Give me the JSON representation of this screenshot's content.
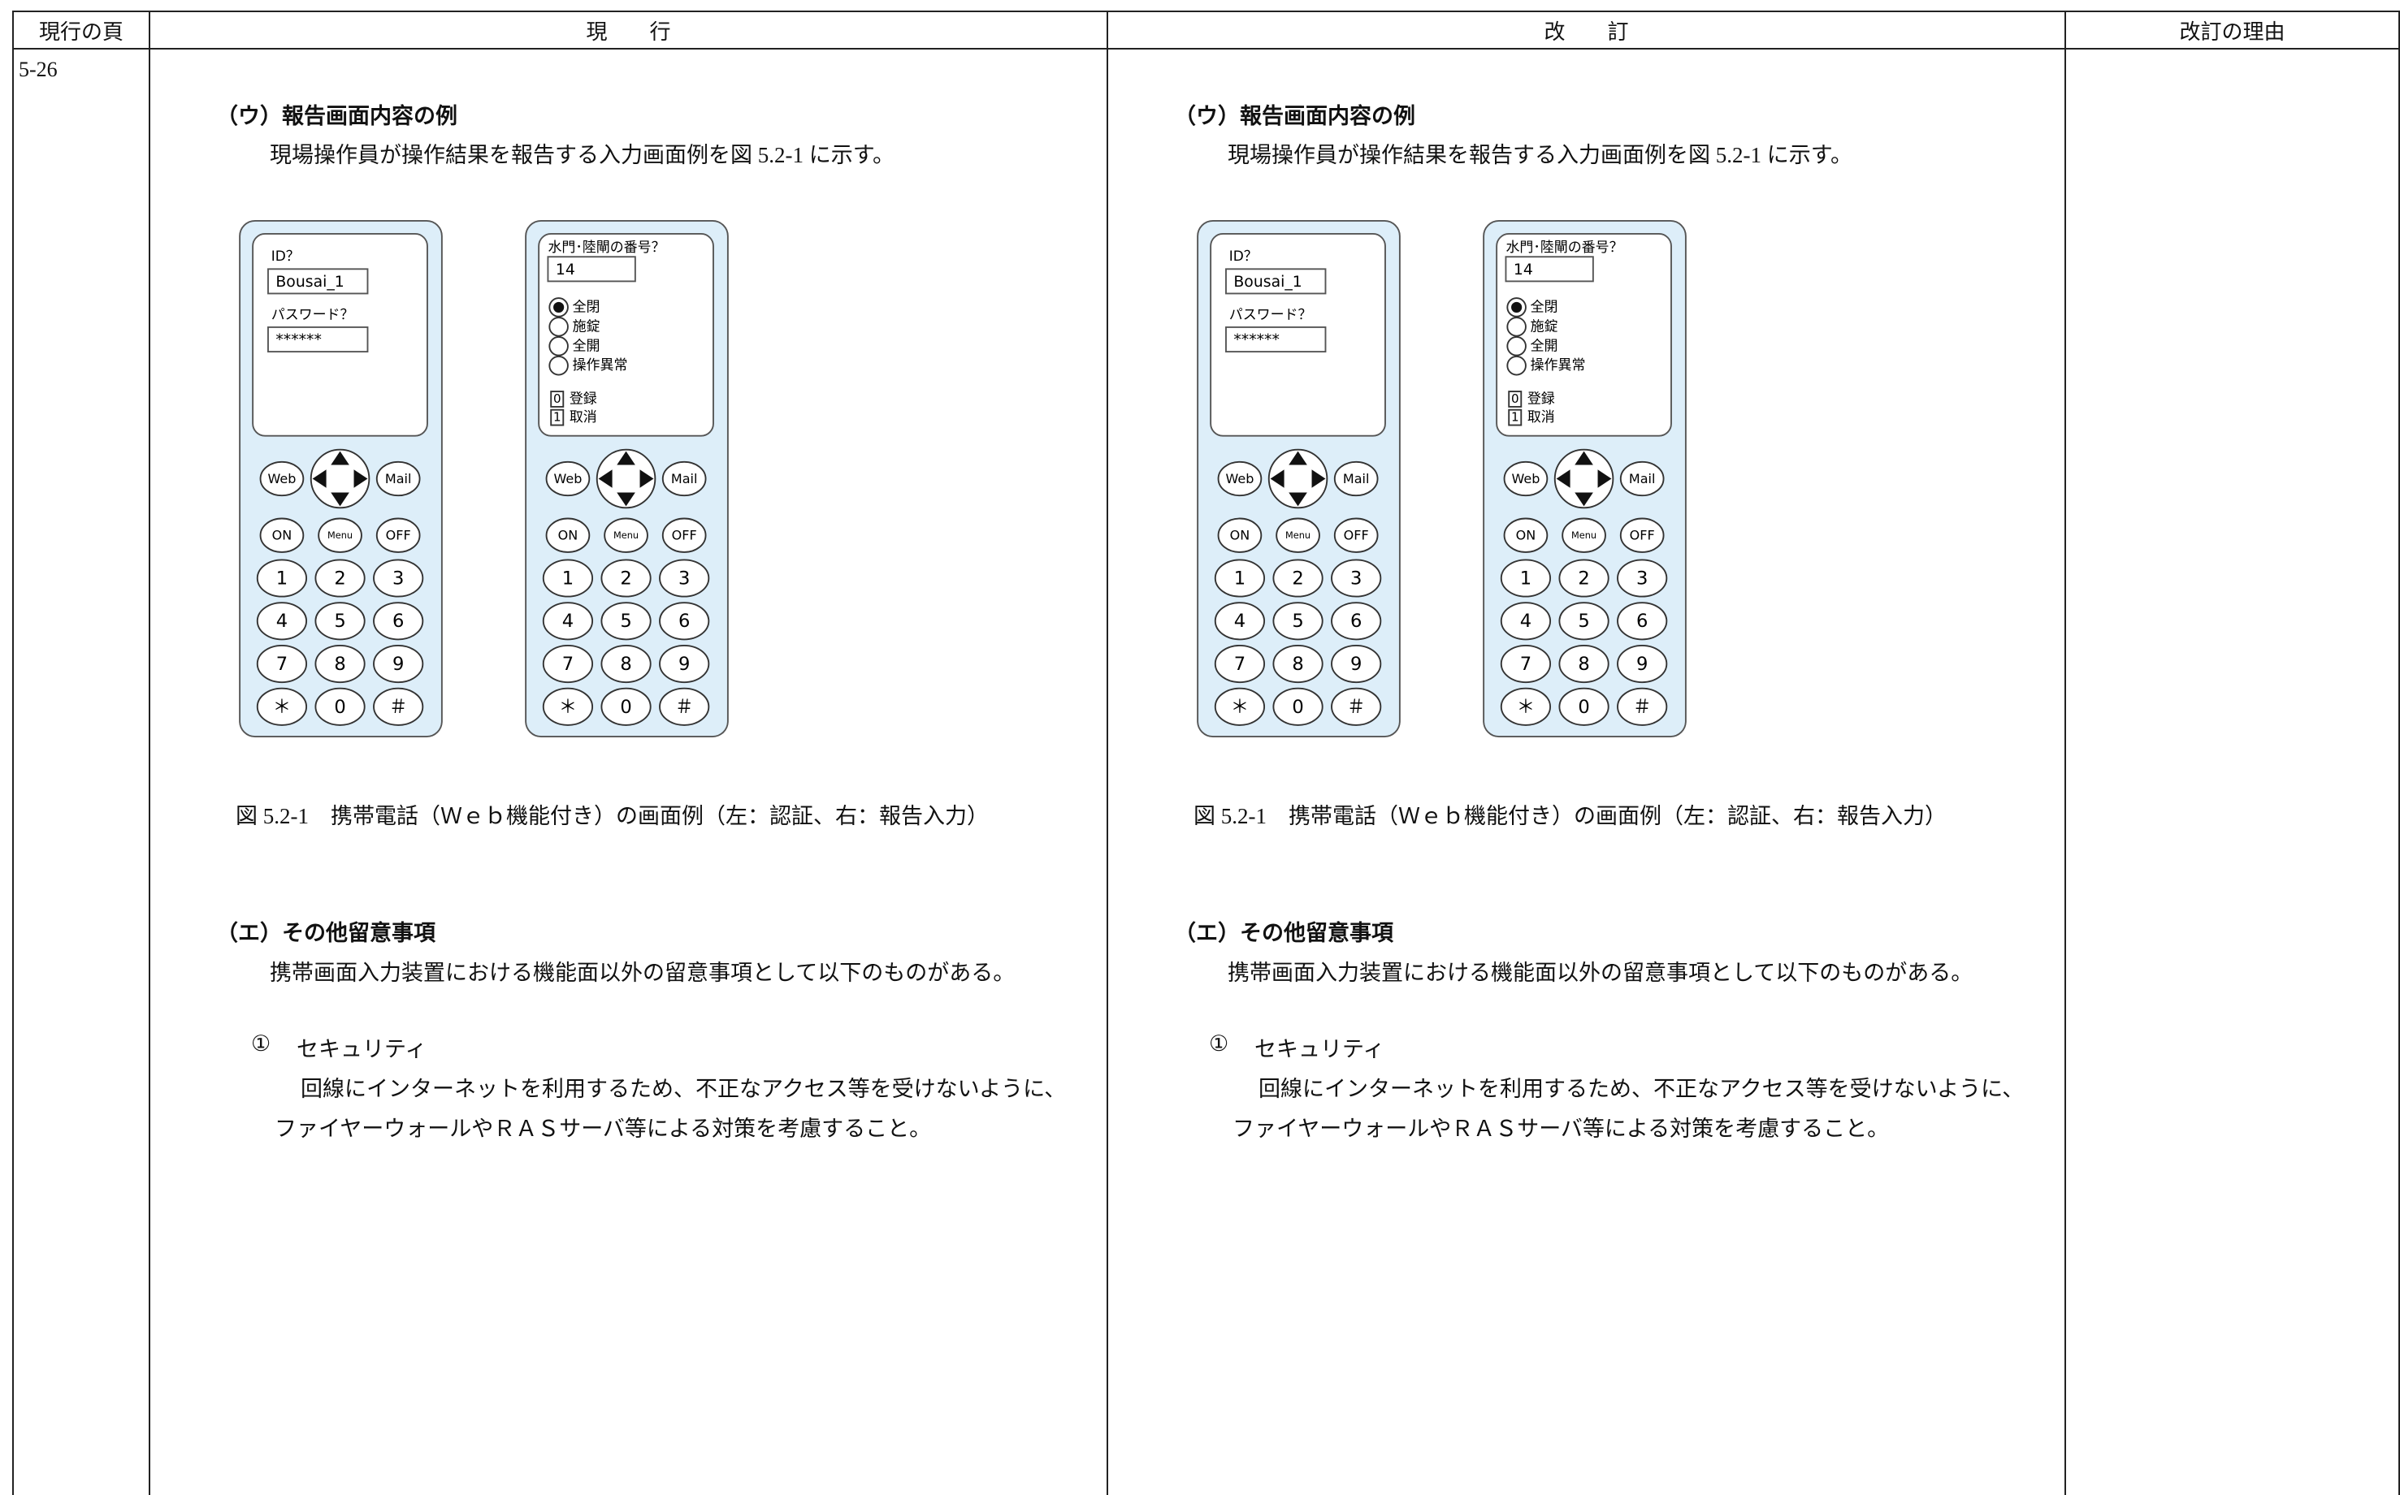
{
  "header": {
    "page": "現行の頁",
    "current": "現　　行",
    "revised": "改　　訂",
    "reason": "改訂の理由"
  },
  "row": {
    "page": "5-26",
    "current": {
      "section_u": {
        "heading": "（ウ）報告画面内容の例",
        "text": "現場操作員が操作結果を報告する入力画面例を図 5.2-1 に示す。"
      },
      "phones": [
        {
          "fields": [
            {
              "label": "ID？",
              "value": "Bousai_1"
            },
            {
              "label": "パスワード？",
              "value": "******"
            }
          ],
          "keys": [
            "Web",
            "Mail",
            "ON",
            "Menu",
            "OFF",
            "1",
            "2",
            "3",
            "4",
            "5",
            "6",
            "7",
            "8",
            "9",
            "＊",
            "0",
            "＃"
          ]
        },
        {
          "fields": [
            {
              "label": "水門･陸閘の番号？",
              "value": "14"
            }
          ],
          "options": [
            {
              "label": "全閉",
              "selected": true
            },
            {
              "label": "施錠",
              "selected": false
            },
            {
              "label": "全開",
              "selected": false
            },
            {
              "label": "操作異常",
              "selected": false
            }
          ],
          "actions": [
            {
              "key": "0",
              "label": "登録"
            },
            {
              "key": "1",
              "label": "取消"
            }
          ],
          "keys": [
            "Web",
            "Mail",
            "ON",
            "Menu",
            "OFF",
            "1",
            "2",
            "3",
            "4",
            "5",
            "6",
            "7",
            "8",
            "9",
            "＊",
            "0",
            "＃"
          ]
        }
      ],
      "caption": "図 5.2-1　携帯電話（Ｗｅｂ機能付き）の画面例（左：認証、右：報告入力）",
      "section_e": {
        "heading": "（エ）その他留意事項",
        "text": "携帯画面入力装置における機能面以外の留意事項として以下のものがある。",
        "item": {
          "number": "①",
          "title": "セキュリティ",
          "lines": [
            "回線にインターネットを利用するため、不正なアクセス等を受けないように、",
            "ファイヤーウォールやＲＡＳサーバ等による対策を考慮すること。"
          ]
        }
      }
    },
    "revised": {
      "section_u": {
        "heading": "（ウ）報告画面内容の例",
        "text": "現場操作員が操作結果を報告する入力画面例を図 5.2-1 に示す。"
      },
      "phones": [
        {
          "fields": [
            {
              "label": "ID？",
              "value": "Bousai_1"
            },
            {
              "label": "パスワード？",
              "value": "******"
            }
          ],
          "keys": [
            "Web",
            "Mail",
            "ON",
            "Menu",
            "OFF",
            "1",
            "2",
            "3",
            "4",
            "5",
            "6",
            "7",
            "8",
            "9",
            "＊",
            "0",
            "＃"
          ]
        },
        {
          "fields": [
            {
              "label": "水門･陸閘の番号？",
              "value": "14"
            }
          ],
          "options": [
            {
              "label": "全閉",
              "selected": true
            },
            {
              "label": "施錠",
              "selected": false
            },
            {
              "label": "全開",
              "selected": false
            },
            {
              "label": "操作異常",
              "selected": false
            }
          ],
          "actions": [
            {
              "key": "0",
              "label": "登録"
            },
            {
              "key": "1",
              "label": "取消"
            }
          ],
          "keys": [
            "Web",
            "Mail",
            "ON",
            "Menu",
            "OFF",
            "1",
            "2",
            "3",
            "4",
            "5",
            "6",
            "7",
            "8",
            "9",
            "＊",
            "0",
            "＃"
          ]
        }
      ],
      "caption": "図 5.2-1　携帯電話（Ｗｅｂ機能付き）の画面例（左：認証、右：報告入力）",
      "section_e": {
        "heading": "（エ）その他留意事項",
        "text": "携帯画面入力装置における機能面以外の留意事項として以下のものがある。",
        "item": {
          "number": "①",
          "title": "セキュリティ",
          "lines": [
            "回線にインターネットを利用するため、不正なアクセス等を受けないように、",
            "ファイヤーウォールやＲＡＳサーバ等による対策を考慮すること。"
          ]
        }
      }
    },
    "reason": null
  }
}
